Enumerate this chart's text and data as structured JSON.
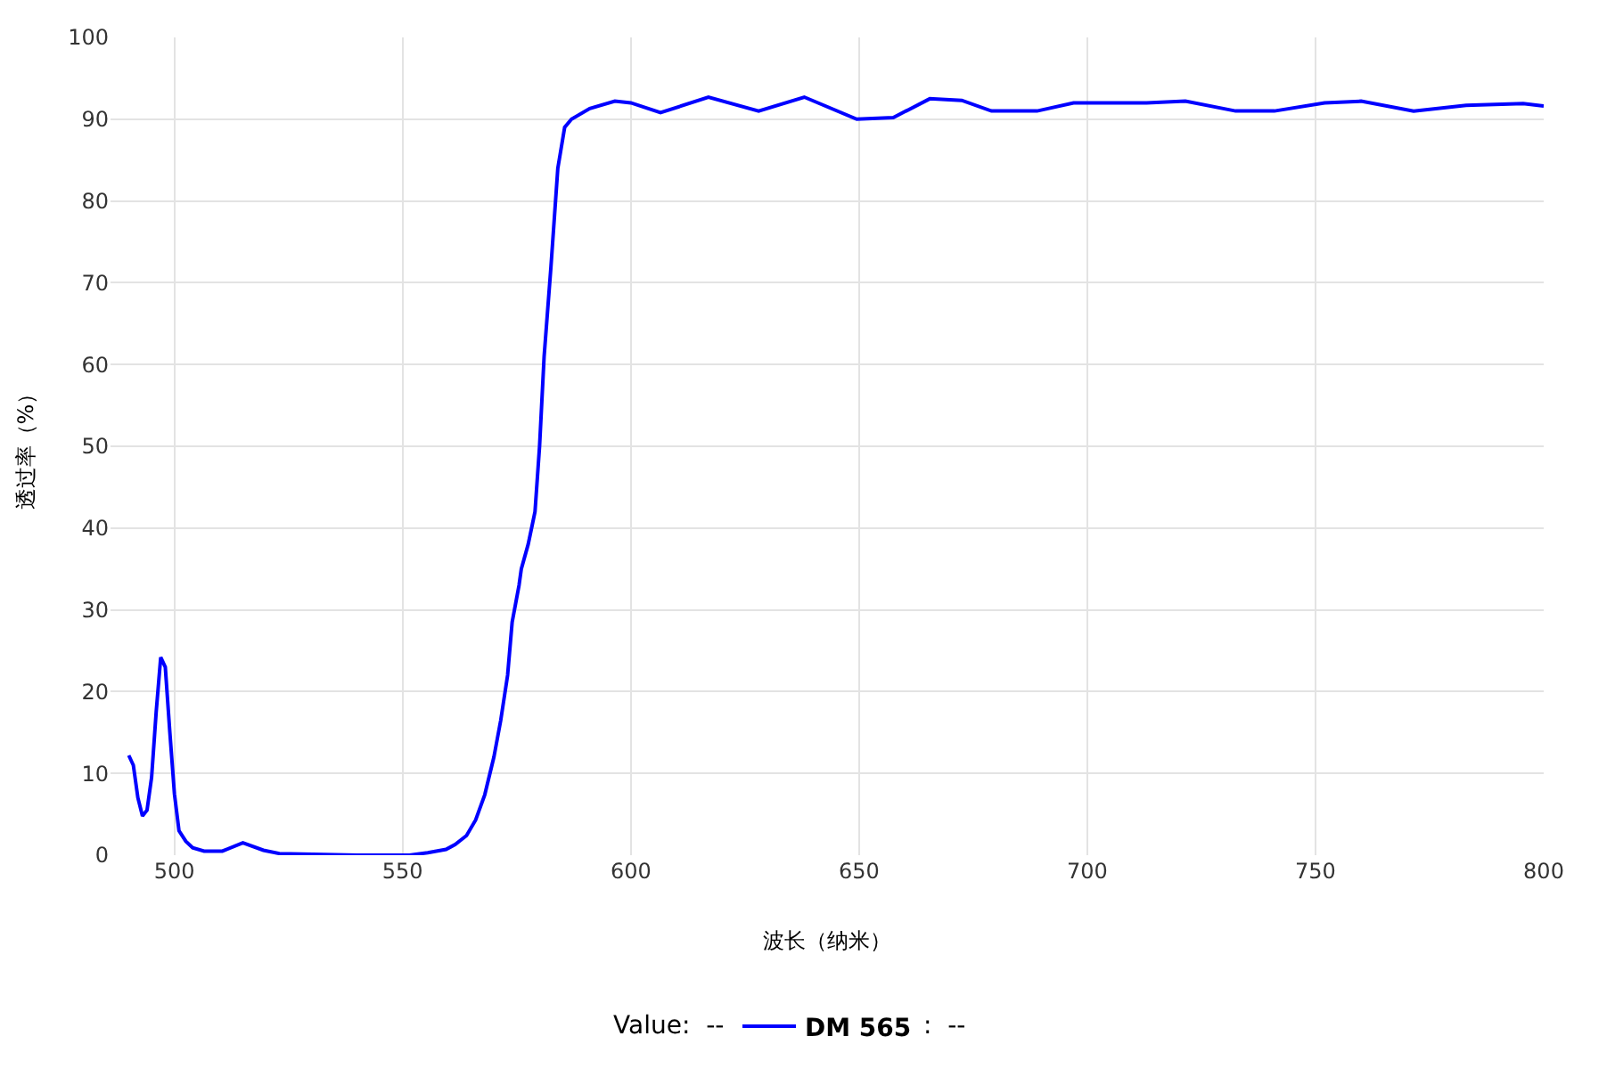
{
  "chart_data": {
    "type": "line",
    "xlabel": "波长（纳米）",
    "ylabel": "透过率（%）",
    "annotations": [
      "Value:  --",
      ":  --"
    ],
    "xlim": [
      486,
      800
    ],
    "xticks": [
      500,
      550,
      600,
      650,
      700,
      750,
      800
    ],
    "ylim": [
      0,
      100
    ],
    "yticks": [
      0,
      10,
      20,
      30,
      40,
      50,
      60,
      70,
      80,
      90,
      100
    ],
    "grid": true,
    "legend": "bottom",
    "marker": "none",
    "line_style": "solid",
    "series": [
      {
        "name": "DM 565",
        "color": "#0000ff",
        "x": [
          490,
          491,
          492,
          493,
          494,
          495,
          496,
          497,
          498,
          499,
          500,
          501,
          502.5,
          504,
          506.5,
          510.5,
          515,
          519.5,
          523,
          540,
          551.5,
          555.5,
          559.5,
          561.5,
          564,
          566,
          568,
          570,
          571.5,
          573,
          574,
          575.5,
          576,
          577.5,
          579,
          580,
          581,
          582.5,
          584,
          585.5,
          587,
          591,
          596.5,
          600,
          606.5,
          617,
          628,
          638,
          649.5,
          657.5,
          665.5,
          672.5,
          679,
          689,
          697,
          713,
          721.5,
          732.5,
          741,
          752,
          760,
          771.5,
          783,
          795.5,
          800
        ],
        "values": [
          12.2,
          11,
          7,
          4.8,
          5.5,
          9.5,
          17.5,
          24.2,
          23,
          15,
          7.5,
          3,
          1.7,
          0.9,
          0.5,
          0.5,
          1.5,
          0.6,
          0.2,
          0,
          0,
          0.3,
          0.7,
          1.3,
          2.4,
          4.3,
          7.4,
          12,
          16.5,
          22,
          28.5,
          33,
          35,
          38,
          42,
          50,
          61,
          72,
          84,
          89,
          90,
          91.3,
          92.2,
          92,
          90.8,
          92.7,
          91,
          92.7,
          90,
          90.2,
          92.5,
          92.3,
          91,
          91,
          92,
          92,
          92.2,
          91,
          91,
          92,
          92.2,
          91,
          91.7,
          91.9,
          91.6
        ]
      }
    ]
  }
}
